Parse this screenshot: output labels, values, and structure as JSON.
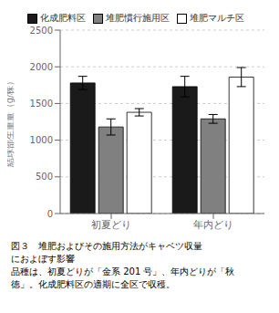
{
  "chart_data": {
    "type": "bar",
    "categories": [
      "初夏どり",
      "年内どり"
    ],
    "series": [
      {
        "name": "化成肥料区",
        "color": "#1a1a1a",
        "values": [
          1780,
          1730
        ],
        "errors": [
          90,
          140
        ]
      },
      {
        "name": "堆肥慣行施用区",
        "color": "#808080",
        "values": [
          1180,
          1290
        ],
        "errors": [
          110,
          60
        ]
      },
      {
        "name": "堆肥マルチ区",
        "color": "#ffffff",
        "values": [
          1380,
          1860
        ],
        "errors": [
          50,
          130
        ]
      }
    ],
    "y_label": "結球部生重量（g/株）",
    "ylim": [
      0,
      2500
    ],
    "yticks": [
      0,
      500,
      1000,
      1500,
      2000,
      2500
    ],
    "grid": true,
    "legend": "top",
    "annotations": [
      "図３　堆肥およびその施用方法がキャベツ収量",
      "におよぼす影響",
      "品種は、初夏どりが「金系 201 号」、年内どりが「秋",
      "徳」。化成肥料区の適期に全区で収穫。"
    ]
  }
}
